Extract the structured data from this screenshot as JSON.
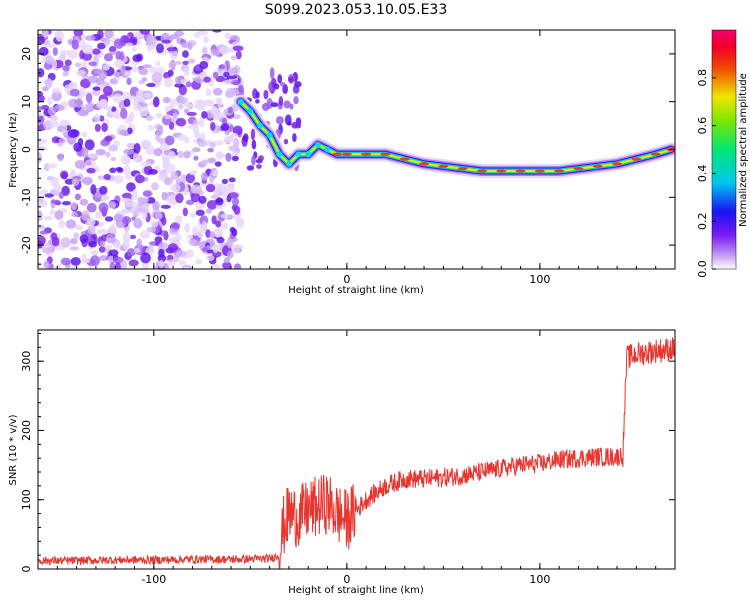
{
  "title": "S099.2023.053.10.05.E33",
  "chart_data": [
    {
      "type": "heatmap",
      "xlabel": "Height of straight line (km)",
      "ylabel": "Frequency (Hz)",
      "xlim": [
        -160,
        170
      ],
      "ylim": [
        -25,
        25
      ],
      "xticks": [
        -100,
        0,
        100
      ],
      "yticks": [
        -20,
        -10,
        0,
        10,
        20
      ],
      "colorbar": {
        "label": "Normalized spectral amplitude",
        "range": [
          0,
          1
        ],
        "ticks": [
          0.0,
          0.2,
          0.4,
          0.6,
          0.8
        ],
        "colormap": "rainbow (white-purple-blue-cyan-green-yellow-red-pink)"
      },
      "ridge": {
        "description": "Peak frequency of spectrum vs height",
        "x": [
          -55,
          -50,
          -45,
          -40,
          -35,
          -30,
          -25,
          -20,
          -15,
          -10,
          -5,
          0,
          10,
          20,
          30,
          40,
          50,
          60,
          70,
          80,
          90,
          100,
          110,
          120,
          130,
          140,
          150,
          160,
          168
        ],
        "y": [
          10,
          8,
          5,
          3,
          -1,
          -3,
          -1,
          -1,
          1,
          0,
          -1,
          -1,
          -1,
          -1,
          -2,
          -3,
          -3.5,
          -4,
          -4.5,
          -4.5,
          -4.5,
          -4.5,
          -4.5,
          -4,
          -3.5,
          -3,
          -2,
          -1,
          0
        ]
      },
      "noise_region_x": [
        -160,
        -55
      ]
    },
    {
      "type": "line",
      "xlabel": "Height of straight line (km)",
      "ylabel": "SNR (10 * v/v)",
      "xlim": [
        -160,
        170
      ],
      "ylim": [
        0,
        345
      ],
      "xticks": [
        -100,
        0,
        100
      ],
      "yticks": [
        0,
        100,
        200,
        300
      ],
      "series": [
        {
          "color": "#e8352e",
          "x": [
            -160,
            -140,
            -120,
            -100,
            -80,
            -60,
            -40,
            -35,
            -33,
            -30,
            -25,
            -20,
            -15,
            -10,
            -5,
            0,
            5,
            10,
            15,
            20,
            25,
            30,
            40,
            50,
            60,
            70,
            80,
            90,
            100,
            110,
            120,
            130,
            140,
            143,
            145,
            150,
            160,
            170
          ],
          "y": [
            12,
            12,
            13,
            13,
            14,
            14,
            15,
            20,
            60,
            80,
            75,
            85,
            90,
            95,
            80,
            70,
            85,
            100,
            110,
            120,
            125,
            130,
            130,
            132,
            135,
            140,
            145,
            150,
            152,
            158,
            160,
            162,
            162,
            165,
            305,
            310,
            315,
            318
          ]
        }
      ]
    }
  ]
}
